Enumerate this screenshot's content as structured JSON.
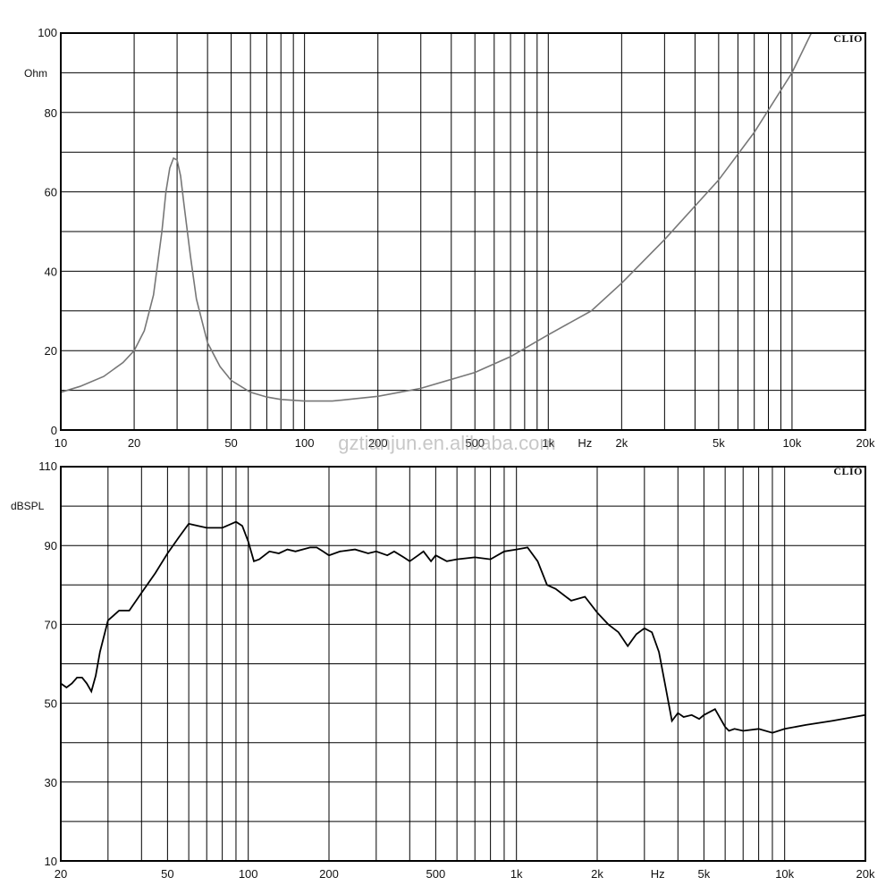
{
  "watermark": "gztianjun.en.alibaba.com",
  "chart_data": [
    {
      "type": "line",
      "brand": "CLIO",
      "ylabel": "Ohm",
      "x_scale": "log",
      "xlim": [
        10,
        20000
      ],
      "ylim": [
        0,
        100
      ],
      "y_ticks": [
        "100",
        "80",
        "60",
        "40",
        "20",
        "0"
      ],
      "x_ticks": [
        "10",
        "20",
        "50",
        "100",
        "200",
        "500",
        "1k",
        "Hz",
        "2k",
        "5k",
        "10k",
        "20k"
      ],
      "grid": true,
      "series": [
        {
          "color": "#777777",
          "x": [
            10,
            12,
            15,
            18,
            20,
            22,
            24,
            26,
            27,
            28,
            29,
            30,
            31,
            32,
            34,
            36,
            40,
            45,
            50,
            60,
            70,
            80,
            100,
            130,
            200,
            300,
            500,
            700,
            1000,
            1500,
            2000,
            3000,
            5000,
            7000,
            10000,
            12000
          ],
          "y": [
            9.5,
            11,
            13.5,
            17,
            20,
            25,
            34,
            50,
            60,
            66,
            68.5,
            68,
            64,
            57,
            44,
            33,
            22,
            16,
            12.5,
            9.5,
            8.3,
            7.7,
            7.3,
            7.3,
            8.5,
            10.5,
            14.5,
            18.5,
            24,
            30,
            37,
            48,
            63,
            75,
            90,
            100
          ]
        }
      ]
    },
    {
      "type": "line",
      "brand": "CLIO",
      "ylabel": "dBSPL",
      "x_scale": "log",
      "xlim": [
        20,
        20000
      ],
      "ylim": [
        10,
        110
      ],
      "y_ticks": [
        "110",
        "90",
        "70",
        "50",
        "30",
        "10"
      ],
      "x_ticks": [
        "20",
        "50",
        "100",
        "200",
        "500",
        "1k",
        "2k",
        "Hz",
        "5k",
        "10k",
        "20k"
      ],
      "grid": true,
      "series": [
        {
          "color": "#000000",
          "x": [
            20,
            21,
            22,
            23,
            24,
            25,
            26,
            27,
            28,
            30,
            33,
            36,
            40,
            45,
            50,
            55,
            60,
            65,
            70,
            80,
            90,
            95,
            100,
            105,
            110,
            120,
            130,
            140,
            150,
            170,
            180,
            190,
            200,
            220,
            250,
            280,
            300,
            330,
            350,
            380,
            400,
            430,
            450,
            480,
            500,
            550,
            600,
            700,
            800,
            900,
            1000,
            1100,
            1200,
            1300,
            1400,
            1600,
            1800,
            2000,
            2200,
            2400,
            2600,
            2800,
            3000,
            3200,
            3400,
            3600,
            3800,
            4000,
            4200,
            4500,
            4800,
            5000,
            5500,
            6000,
            6200,
            6500,
            7000,
            8000,
            9000,
            10000,
            12000,
            15000,
            20000
          ],
          "y": [
            55,
            54,
            55,
            56.5,
            56.5,
            55,
            53,
            57,
            63,
            71,
            73.5,
            73.5,
            78,
            83,
            88,
            92,
            95.5,
            95,
            94.5,
            94.5,
            96,
            95,
            91,
            86,
            86.5,
            88.5,
            88,
            89,
            88.5,
            89.5,
            89.5,
            88.5,
            87.5,
            88.5,
            89,
            88,
            88.5,
            87.5,
            88.5,
            87,
            86,
            87.5,
            88.5,
            86,
            87.5,
            86,
            86.5,
            87,
            86.5,
            88.5,
            89,
            89.5,
            86,
            80,
            79,
            76,
            77,
            73,
            70,
            68,
            64.5,
            67.5,
            69,
            68,
            63,
            54,
            45.5,
            47.5,
            46.5,
            47,
            46,
            47,
            48.5,
            44,
            43,
            43.5,
            43,
            43.5,
            42.5,
            43.5,
            44.5,
            45.5,
            47
          ]
        }
      ]
    }
  ]
}
